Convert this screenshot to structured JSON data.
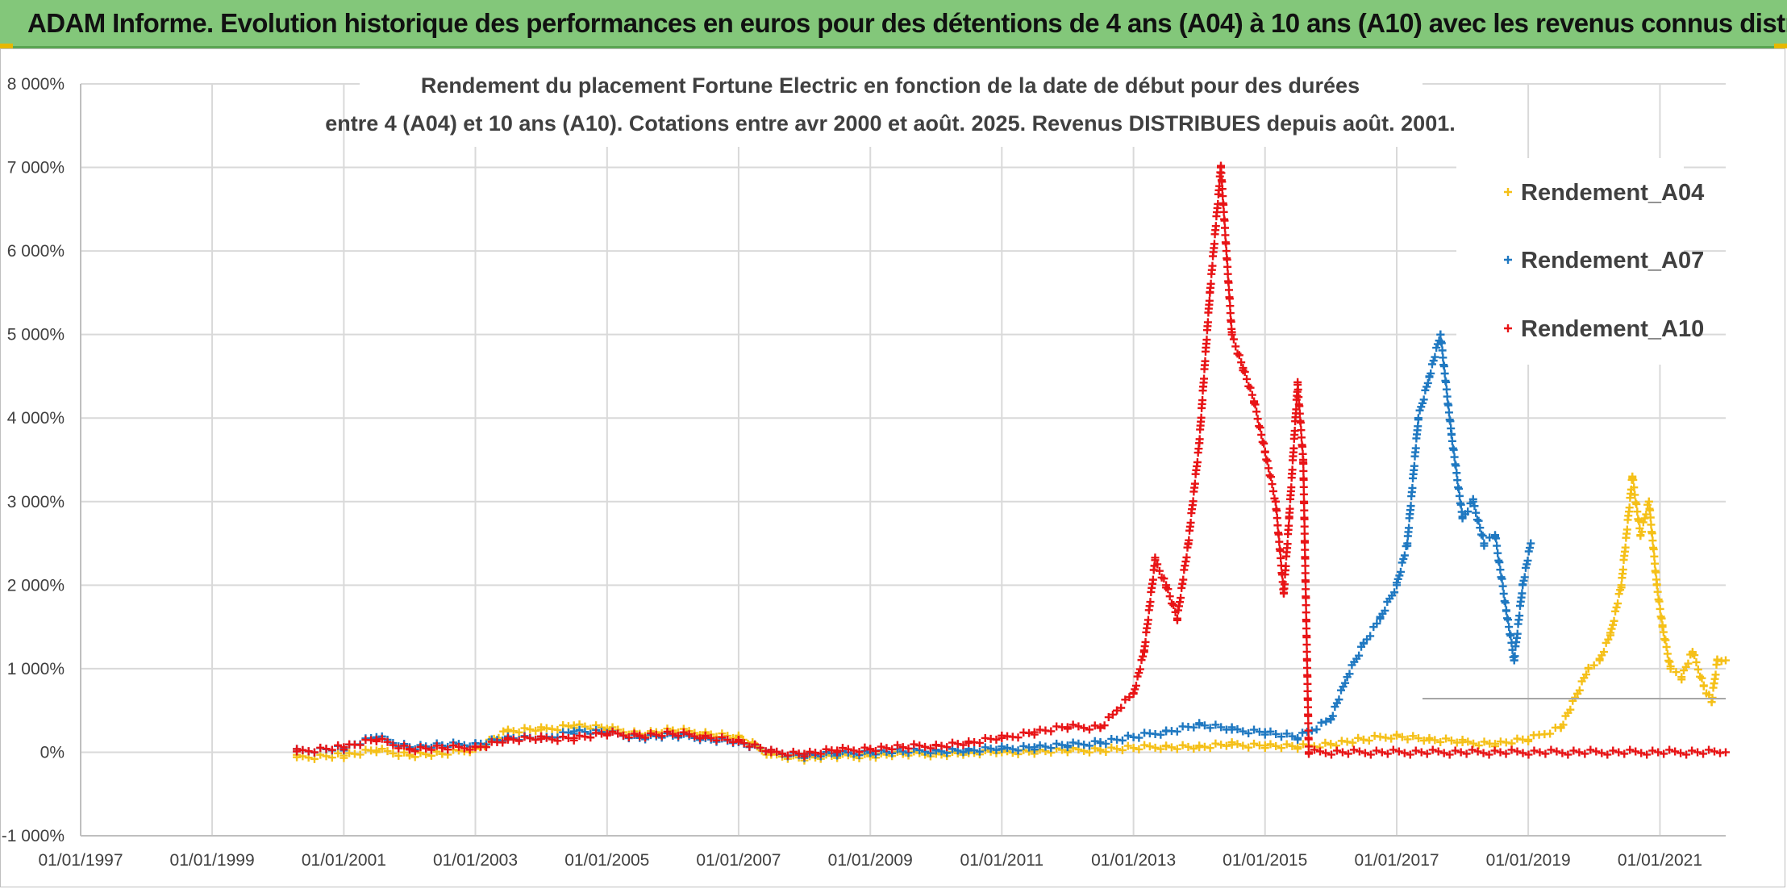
{
  "header": {
    "banner_text": "ADAM Informe. Evolution historique des performances en euros pour des détentions de 4 ans (A04) à 10 ans (A10) avec les revenus connus distribués"
  },
  "chart_data": {
    "type": "scatter",
    "title": "Rendement du placement Fortune Electric  en fonction de la date de début pour des durées",
    "subtitle": "entre 4 (A04) et 10 ans (A10). Cotations entre avr 2000 et août. 2025. Revenus DISTRIBUES depuis août. 2001.",
    "xlabel": "",
    "ylabel": "",
    "y_ticks": [
      "-1 000%",
      "0%",
      "1 000%",
      "2 000%",
      "3 000%",
      "4 000%",
      "5 000%",
      "6 000%",
      "7 000%",
      "8 000%"
    ],
    "x_ticks": [
      "01/01/1997",
      "01/01/1999",
      "01/01/2001",
      "01/01/2003",
      "01/01/2005",
      "01/01/2007",
      "01/01/2009",
      "01/01/2011",
      "01/01/2013",
      "01/01/2015",
      "01/01/2017",
      "01/01/2019",
      "01/01/2021"
    ],
    "xlim": [
      "1997-01-01",
      "2022-01-01"
    ],
    "ylim": [
      -1000,
      8000
    ],
    "grid": true,
    "legend_position": "top-right",
    "marker": "+",
    "series": [
      {
        "name": "Rendement_A04",
        "color": "#f5c018",
        "points": [
          [
            "2000-04-15",
            -60
          ],
          [
            "2001-01-01",
            -40
          ],
          [
            "2001-07-01",
            20
          ],
          [
            "2002-01-01",
            -30
          ],
          [
            "2002-07-01",
            -20
          ],
          [
            "2003-01-01",
            40
          ],
          [
            "2003-07-01",
            250
          ],
          [
            "2004-01-01",
            270
          ],
          [
            "2004-07-01",
            320
          ],
          [
            "2005-01-01",
            280
          ],
          [
            "2005-07-01",
            220
          ],
          [
            "2006-01-01",
            260
          ],
          [
            "2006-07-01",
            230
          ],
          [
            "2007-01-01",
            180
          ],
          [
            "2007-07-01",
            -30
          ],
          [
            "2008-01-01",
            -70
          ],
          [
            "2008-07-01",
            -50
          ],
          [
            "2009-01-01",
            -40
          ],
          [
            "2009-07-01",
            -20
          ],
          [
            "2010-01-01",
            -20
          ],
          [
            "2010-07-01",
            -10
          ],
          [
            "2011-01-01",
            0
          ],
          [
            "2011-07-01",
            10
          ],
          [
            "2012-01-01",
            20
          ],
          [
            "2012-07-01",
            30
          ],
          [
            "2013-01-01",
            50
          ],
          [
            "2013-07-01",
            70
          ],
          [
            "2014-01-01",
            60
          ],
          [
            "2014-07-01",
            90
          ],
          [
            "2015-01-01",
            80
          ],
          [
            "2015-07-01",
            60
          ],
          [
            "2016-01-01",
            100
          ],
          [
            "2016-07-01",
            150
          ],
          [
            "2017-01-01",
            200
          ],
          [
            "2017-07-01",
            150
          ],
          [
            "2018-01-01",
            120
          ],
          [
            "2018-07-01",
            100
          ],
          [
            "2019-01-01",
            150
          ],
          [
            "2019-07-01",
            300
          ],
          [
            "2019-10-01",
            700
          ],
          [
            "2019-12-01",
            1000
          ],
          [
            "2020-02-01",
            1100
          ],
          [
            "2020-04-01",
            1400
          ],
          [
            "2020-06-01",
            2000
          ],
          [
            "2020-08-01",
            3300
          ],
          [
            "2020-09-15",
            2600
          ],
          [
            "2020-11-01",
            3000
          ],
          [
            "2020-12-15",
            2000
          ],
          [
            "2021-01-15",
            1500
          ],
          [
            "2021-03-01",
            1000
          ],
          [
            "2021-05-01",
            900
          ],
          [
            "2021-07-01",
            1200
          ],
          [
            "2021-09-01",
            800
          ],
          [
            "2021-10-15",
            600
          ],
          [
            "2021-11-15",
            1100
          ],
          [
            "2022-01-01",
            1100
          ]
        ]
      },
      {
        "name": "Rendement_A07",
        "color": "#1f78c1",
        "points": [
          [
            "2000-04-15",
            10
          ],
          [
            "2001-01-01",
            50
          ],
          [
            "2001-07-01",
            180
          ],
          [
            "2002-01-01",
            60
          ],
          [
            "2002-07-01",
            80
          ],
          [
            "2003-01-01",
            100
          ],
          [
            "2003-07-01",
            170
          ],
          [
            "2004-01-01",
            160
          ],
          [
            "2004-07-01",
            250
          ],
          [
            "2005-01-01",
            230
          ],
          [
            "2005-07-01",
            180
          ],
          [
            "2006-01-01",
            200
          ],
          [
            "2006-07-01",
            170
          ],
          [
            "2007-01-01",
            120
          ],
          [
            "2007-07-01",
            0
          ],
          [
            "2008-01-01",
            -40
          ],
          [
            "2008-07-01",
            -20
          ],
          [
            "2009-01-01",
            0
          ],
          [
            "2009-07-01",
            10
          ],
          [
            "2010-01-01",
            20
          ],
          [
            "2010-07-01",
            20
          ],
          [
            "2011-01-01",
            40
          ],
          [
            "2011-07-01",
            60
          ],
          [
            "2012-01-01",
            80
          ],
          [
            "2012-07-01",
            120
          ],
          [
            "2013-01-01",
            180
          ],
          [
            "2013-07-01",
            250
          ],
          [
            "2014-01-01",
            330
          ],
          [
            "2014-07-01",
            270
          ],
          [
            "2015-01-01",
            240
          ],
          [
            "2015-07-01",
            170
          ],
          [
            "2016-01-01",
            400
          ],
          [
            "2016-04-01",
            900
          ],
          [
            "2016-07-01",
            1300
          ],
          [
            "2016-10-01",
            1600
          ],
          [
            "2017-01-01",
            2000
          ],
          [
            "2017-03-01",
            2500
          ],
          [
            "2017-05-01",
            4000
          ],
          [
            "2017-07-01",
            4500
          ],
          [
            "2017-09-01",
            5000
          ],
          [
            "2017-11-01",
            3800
          ],
          [
            "2018-01-01",
            2800
          ],
          [
            "2018-03-01",
            3000
          ],
          [
            "2018-05-01",
            2500
          ],
          [
            "2018-07-01",
            2600
          ],
          [
            "2018-09-01",
            1700
          ],
          [
            "2018-10-15",
            1100
          ],
          [
            "2018-12-01",
            2000
          ],
          [
            "2019-01-15",
            2500
          ]
        ]
      },
      {
        "name": "Rendement_A10",
        "color": "#e81416",
        "points": [
          [
            "2000-04-15",
            10
          ],
          [
            "2001-01-01",
            60
          ],
          [
            "2001-07-01",
            150
          ],
          [
            "2002-01-01",
            40
          ],
          [
            "2002-07-01",
            50
          ],
          [
            "2003-01-01",
            60
          ],
          [
            "2003-07-01",
            150
          ],
          [
            "2004-01-01",
            160
          ],
          [
            "2004-07-01",
            170
          ],
          [
            "2005-01-01",
            220
          ],
          [
            "2005-07-01",
            200
          ],
          [
            "2006-01-01",
            220
          ],
          [
            "2006-07-01",
            190
          ],
          [
            "2007-01-01",
            130
          ],
          [
            "2007-07-01",
            0
          ],
          [
            "2008-01-01",
            -20
          ],
          [
            "2008-07-01",
            20
          ],
          [
            "2009-01-01",
            40
          ],
          [
            "2009-07-01",
            60
          ],
          [
            "2010-01-01",
            80
          ],
          [
            "2010-07-01",
            110
          ],
          [
            "2011-01-01",
            170
          ],
          [
            "2011-07-01",
            240
          ],
          [
            "2012-01-01",
            300
          ],
          [
            "2012-07-01",
            300
          ],
          [
            "2012-10-01",
            500
          ],
          [
            "2013-01-01",
            700
          ],
          [
            "2013-03-01",
            1200
          ],
          [
            "2013-05-01",
            2300
          ],
          [
            "2013-07-01",
            2000
          ],
          [
            "2013-09-01",
            1600
          ],
          [
            "2013-11-01",
            2500
          ],
          [
            "2014-01-01",
            3700
          ],
          [
            "2014-03-01",
            5500
          ],
          [
            "2014-05-01",
            7000
          ],
          [
            "2014-07-01",
            5000
          ],
          [
            "2014-09-01",
            4600
          ],
          [
            "2014-11-01",
            4200
          ],
          [
            "2015-01-01",
            3600
          ],
          [
            "2015-03-01",
            3000
          ],
          [
            "2015-04-15",
            1900
          ],
          [
            "2015-05-15",
            2800
          ],
          [
            "2015-07-01",
            4400
          ],
          [
            "2015-08-01",
            3500
          ],
          [
            "2015-09-01",
            0
          ],
          [
            "2022-01-01",
            0
          ]
        ]
      }
    ]
  }
}
